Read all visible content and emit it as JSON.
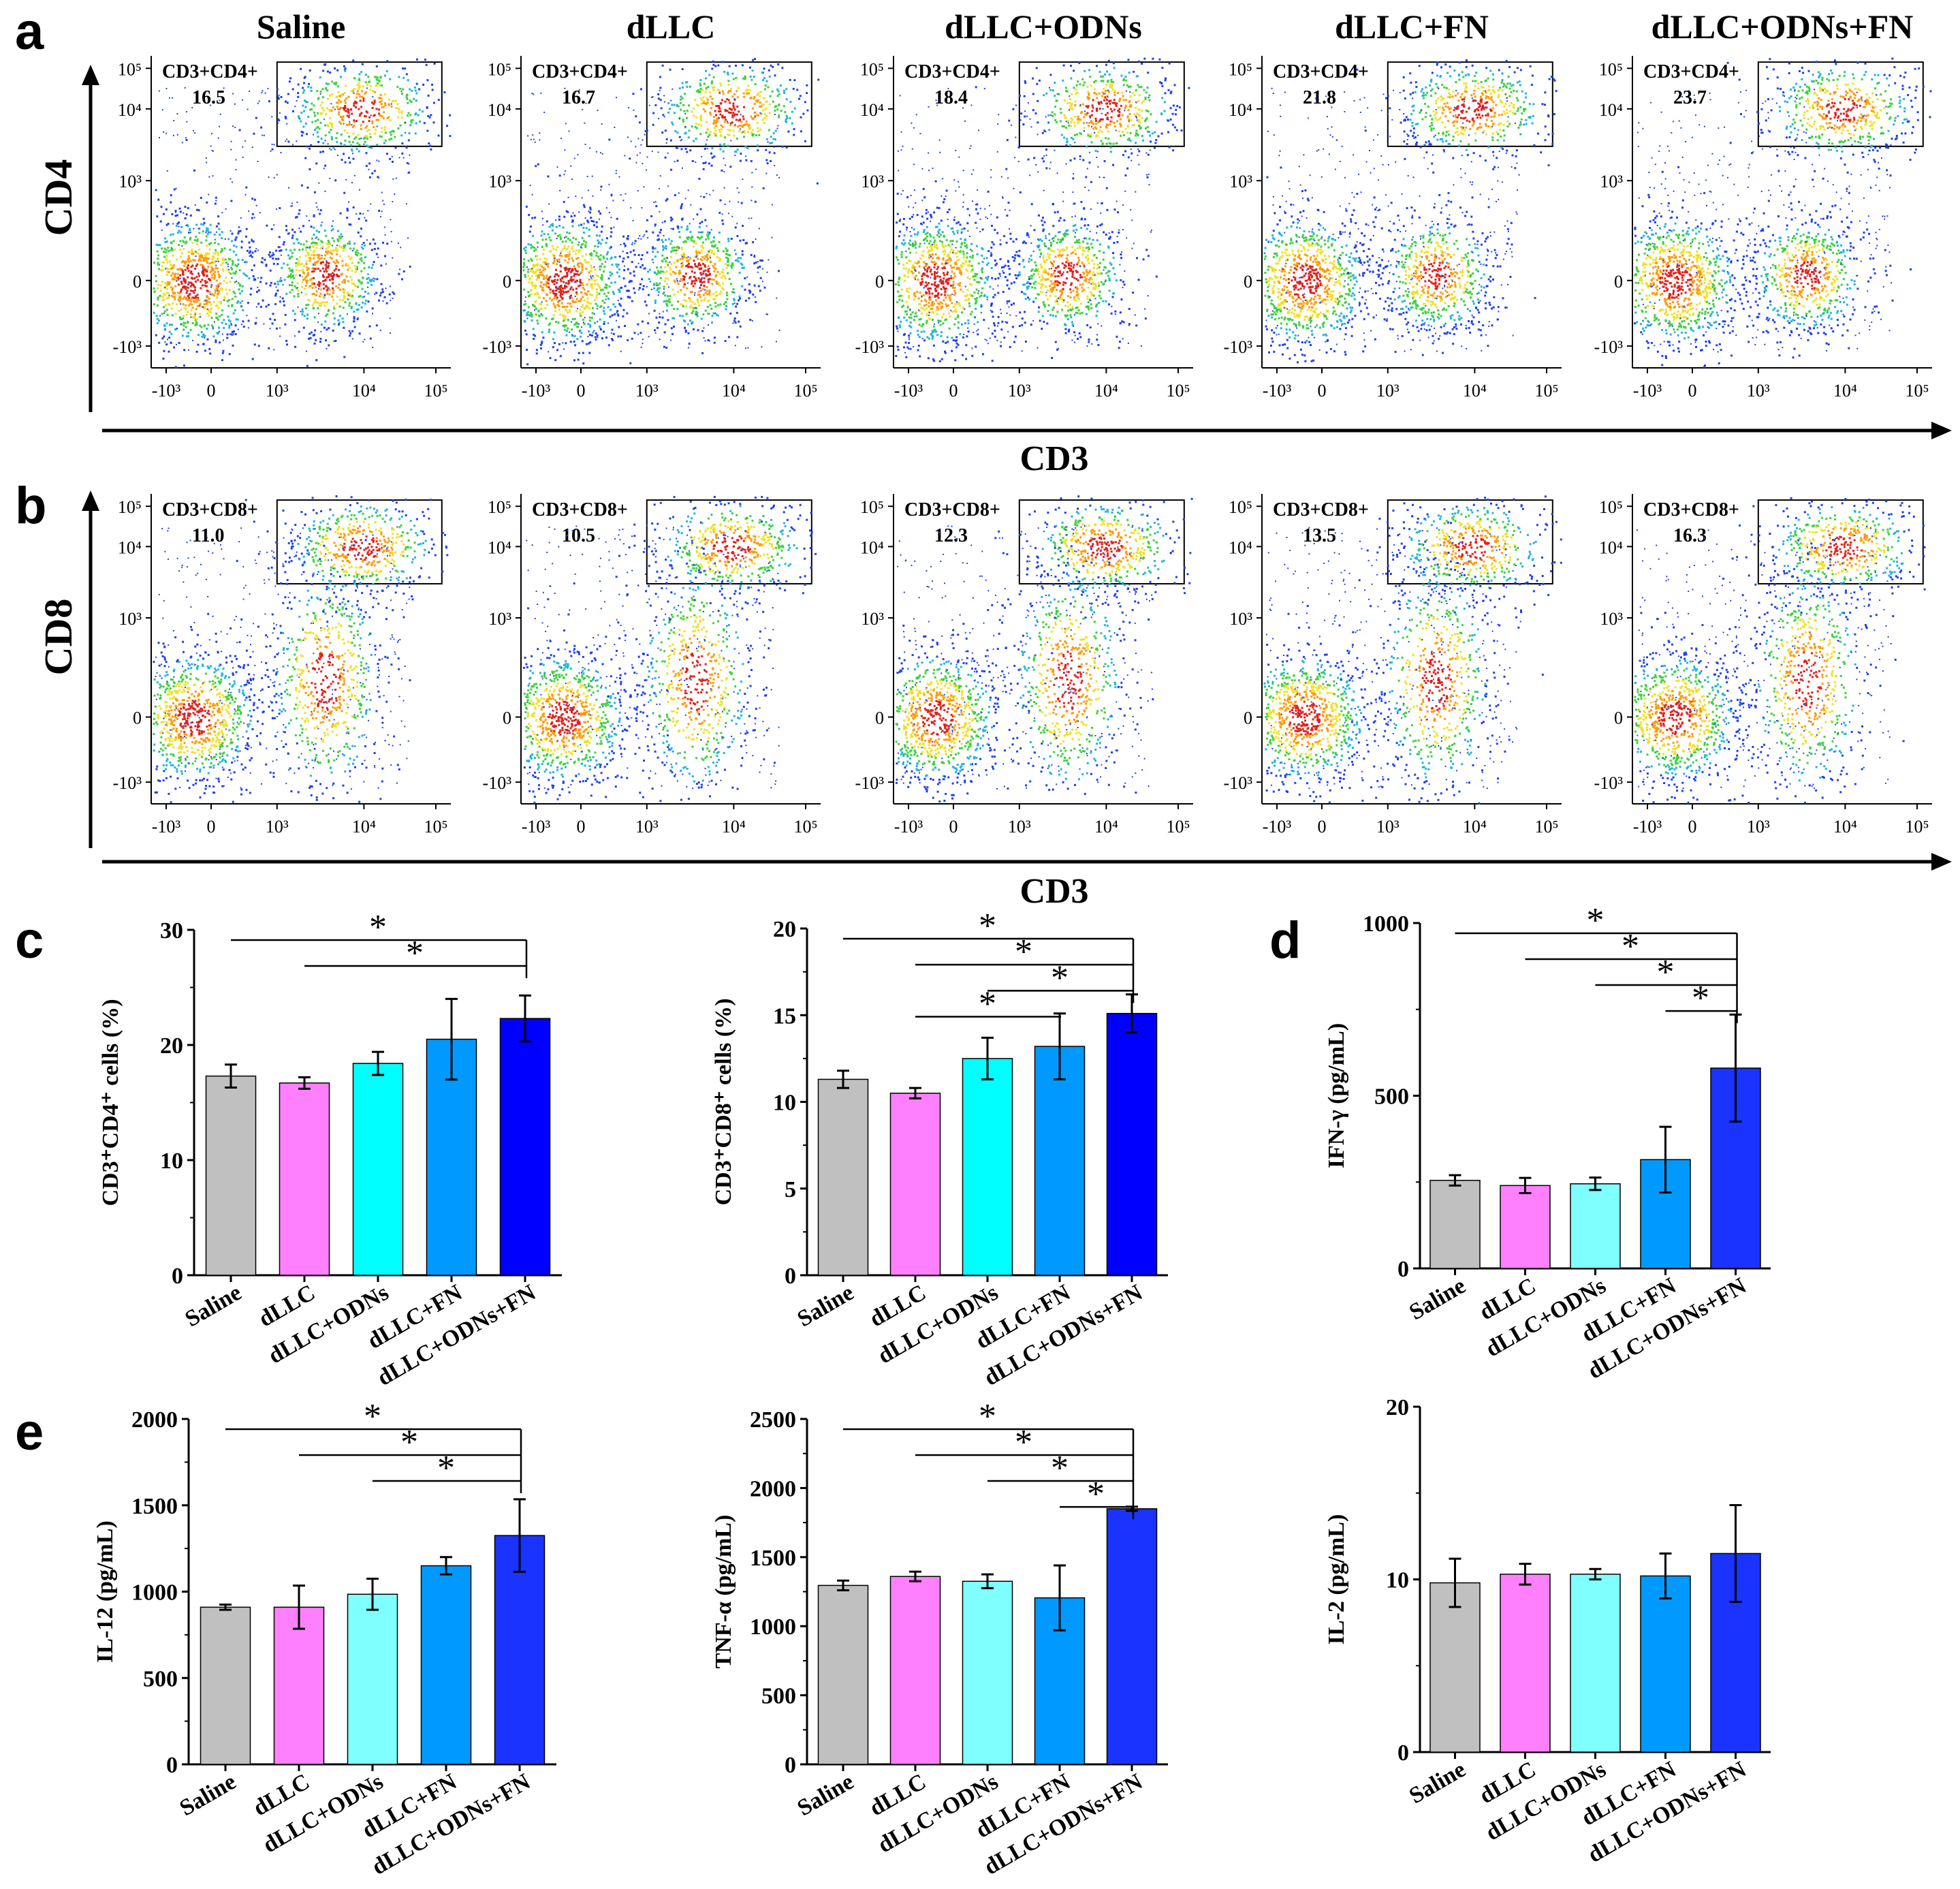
{
  "panel_labels": {
    "a": "a",
    "b": "b",
    "c": "c",
    "d": "d",
    "e": "e"
  },
  "flow": {
    "groups": [
      "Saline",
      "dLLC",
      "dLLC+ODNs",
      "dLLC+FN",
      "dLLC+ODNs+FN"
    ],
    "x_axis_label": "CD3",
    "row_a": {
      "y_axis_label": "CD4",
      "gate_label": "CD3+CD4+",
      "percentages": [
        "16.5",
        "16.7",
        "18.4",
        "21.8",
        "23.7"
      ]
    },
    "row_b": {
      "y_axis_label": "CD8",
      "gate_label": "CD3+CD8+",
      "percentages": [
        "11.0",
        "10.5",
        "12.3",
        "13.5",
        "16.3"
      ]
    },
    "x_ticks": [
      "-10³",
      "0",
      "10³",
      "10⁴",
      "10⁵"
    ],
    "y_ticks": [
      "10⁵",
      "10⁴",
      "10³",
      "0",
      "-10³"
    ]
  },
  "significance_marker": "*",
  "chart_data": [
    {
      "type": "bar",
      "panel": "c",
      "ylabel": "CD3⁺CD4⁺ cells (%)",
      "ylim": [
        0,
        30
      ],
      "yticks": [
        "0",
        "10",
        "20",
        "30"
      ],
      "categories": [
        "Saline",
        "dLLC",
        "dLLC+ODNs",
        "dLLC+FN",
        "dLLC+ODNs+FN"
      ],
      "values": [
        17.3,
        16.7,
        18.4,
        20.5,
        22.3
      ],
      "errors": [
        1.0,
        0.5,
        1.0,
        3.5,
        2.0
      ],
      "colors": [
        "#c0c0c0",
        "#ff80ff",
        "#00ffff",
        "#0099ff",
        "#0000ff"
      ],
      "significance": [
        {
          "from": 0,
          "to": 4
        },
        {
          "from": 1,
          "to": 4
        }
      ]
    },
    {
      "type": "bar",
      "panel": "c",
      "ylabel": "CD3⁺CD8⁺ cells (%)",
      "ylim": [
        0,
        20
      ],
      "yticks": [
        "0",
        "5",
        "10",
        "15",
        "20"
      ],
      "categories": [
        "Saline",
        "dLLC",
        "dLLC+ODNs",
        "dLLC+FN",
        "dLLC+ODNs+FN"
      ],
      "values": [
        11.3,
        10.5,
        12.5,
        13.2,
        15.1
      ],
      "errors": [
        0.5,
        0.3,
        1.2,
        1.9,
        1.1
      ],
      "colors": [
        "#c0c0c0",
        "#ff80ff",
        "#00ffff",
        "#0099ff",
        "#0000ff"
      ],
      "significance": [
        {
          "from": 0,
          "to": 4
        },
        {
          "from": 1,
          "to": 4
        },
        {
          "from": 2,
          "to": 4
        },
        {
          "from": 1,
          "to": 3
        }
      ]
    },
    {
      "type": "bar",
      "panel": "d",
      "ylabel": "IFN-γ (pg/mL)",
      "ylim": [
        0,
        1000
      ],
      "yticks": [
        "0",
        "500",
        "1000"
      ],
      "categories": [
        "Saline",
        "dLLC",
        "dLLC+ODNs",
        "dLLC+FN",
        "dLLC+ODNs+FN"
      ],
      "values": [
        255,
        240,
        245,
        315,
        580
      ],
      "errors": [
        15,
        22,
        18,
        95,
        155
      ],
      "colors": [
        "#c0c0c0",
        "#ff80ff",
        "#80ffff",
        "#0099ff",
        "#1a33ff"
      ],
      "significance": [
        {
          "from": 0,
          "to": 4
        },
        {
          "from": 1,
          "to": 4
        },
        {
          "from": 2,
          "to": 4
        },
        {
          "from": 3,
          "to": 4
        }
      ]
    },
    {
      "type": "bar",
      "panel": "e",
      "ylabel": "IL-12 (pg/mL)",
      "ylim": [
        0,
        2000
      ],
      "yticks": [
        "0",
        "500",
        "1000",
        "1500",
        "2000"
      ],
      "categories": [
        "Saline",
        "dLLC",
        "dLLC+ODNs",
        "dLLC+FN",
        "dLLC+ODNs+FN"
      ],
      "values": [
        910,
        910,
        985,
        1150,
        1325
      ],
      "errors": [
        15,
        125,
        90,
        50,
        210
      ],
      "colors": [
        "#c0c0c0",
        "#ff80ff",
        "#80ffff",
        "#0099ff",
        "#1a33ff"
      ],
      "significance": [
        {
          "from": 0,
          "to": 4
        },
        {
          "from": 1,
          "to": 4
        },
        {
          "from": 2,
          "to": 4
        }
      ]
    },
    {
      "type": "bar",
      "panel": "e",
      "ylabel": "TNF-α (pg/mL)",
      "ylim": [
        0,
        2500
      ],
      "yticks": [
        "0",
        "500",
        "1000",
        "1500",
        "2000",
        "2500"
      ],
      "categories": [
        "Saline",
        "dLLC",
        "dLLC+ODNs",
        "dLLC+FN",
        "dLLC+ODNs+FN"
      ],
      "values": [
        1295,
        1360,
        1325,
        1205,
        1850
      ],
      "errors": [
        35,
        35,
        50,
        235,
        15
      ],
      "colors": [
        "#c0c0c0",
        "#ff80ff",
        "#80ffff",
        "#0099ff",
        "#1a33ff"
      ],
      "significance": [
        {
          "from": 0,
          "to": 4
        },
        {
          "from": 1,
          "to": 4
        },
        {
          "from": 2,
          "to": 4
        },
        {
          "from": 3,
          "to": 4
        }
      ]
    },
    {
      "type": "bar",
      "panel": "e",
      "ylabel": "IL-2 (pg/mL)",
      "ylim": [
        0,
        20
      ],
      "yticks": [
        "0",
        "10",
        "20"
      ],
      "categories": [
        "Saline",
        "dLLC",
        "dLLC+ODNs",
        "dLLC+FN",
        "dLLC+ODNs+FN"
      ],
      "values": [
        9.8,
        10.3,
        10.3,
        10.2,
        11.5
      ],
      "errors": [
        1.4,
        0.6,
        0.3,
        1.3,
        2.8
      ],
      "colors": [
        "#c0c0c0",
        "#ff80ff",
        "#80ffff",
        "#0099ff",
        "#1a33ff"
      ],
      "significance": []
    }
  ]
}
